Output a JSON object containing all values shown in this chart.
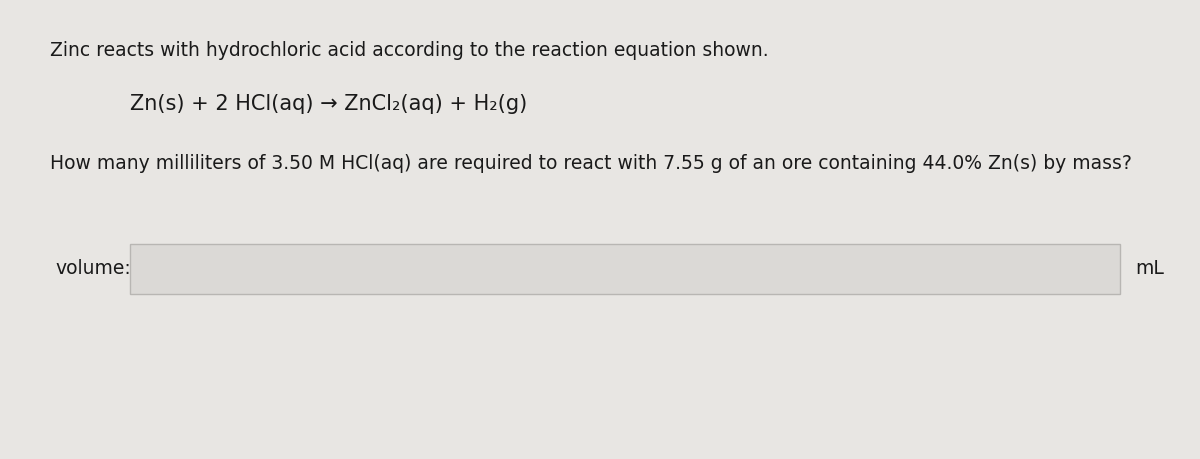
{
  "background_color": "#e8e6e3",
  "content_color": "#f0eeeb",
  "input_box_color": "#dbd9d6",
  "input_box_border": "#b8b6b3",
  "text_color": "#1a1a1a",
  "line1": "Zinc reacts with hydrochloric acid according to the reaction equation shown.",
  "equation": "Zn(s) + 2 HCl(aq) → ZnCl₂(aq) + H₂(g)",
  "question": "How many milliliters of 3.50 M HCl(aq) are required to react with 7.55 g of an ore containing 44.0% Zn(s) by mass?",
  "label_volume": "volume:",
  "label_unit": "mL",
  "font_size_main": 13.5,
  "font_size_eq": 15,
  "font_size_label": 13.5
}
